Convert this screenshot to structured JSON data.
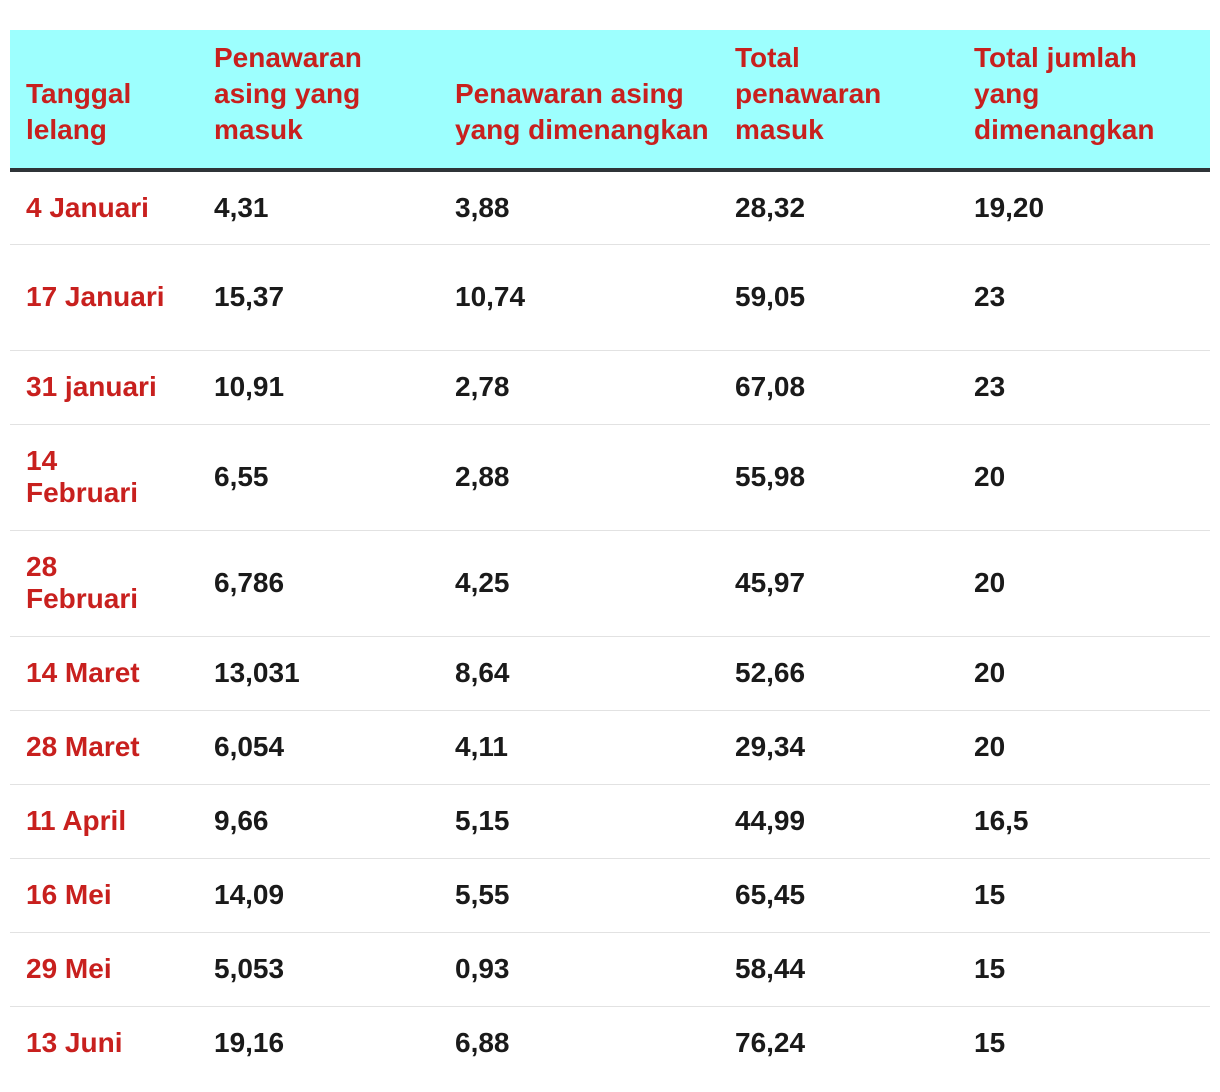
{
  "table": {
    "headers": [
      "Tanggal lelang",
      "Penawaran asing yang masuk",
      "Penawaran asing yang dimenangkan",
      "Total penawaran masuk",
      "Total jumlah yang dimenangkan"
    ],
    "rows": [
      [
        "4 Januari",
        "4,31",
        "3,88",
        "28,32",
        "19,20"
      ],
      [
        "17 Januari",
        "15,37",
        "10,74",
        "59,05",
        "23"
      ],
      [
        "31 januari",
        "10,91",
        "2,78",
        "67,08",
        "23"
      ],
      [
        "14 Februari",
        "6,55",
        "2,88",
        "55,98",
        "20"
      ],
      [
        "28 Februari",
        "6,786",
        "4,25",
        "45,97",
        "20"
      ],
      [
        "14 Maret",
        "13,031",
        "8,64",
        "52,66",
        "20"
      ],
      [
        "28 Maret",
        "6,054",
        "4,11",
        "29,34",
        "20"
      ],
      [
        "11 April",
        "9,66",
        "5,15",
        "44,99",
        "16,5"
      ],
      [
        "16 Mei",
        "14,09",
        "5,55",
        "65,45",
        "15"
      ],
      [
        "29 Mei",
        "5,053",
        "0,93",
        "58,44",
        "15"
      ],
      [
        "13 Juni",
        "19,16",
        "6,88",
        "76,24",
        "15"
      ]
    ]
  },
  "colors": {
    "header_background": "#9dfffe",
    "accent_red": "#c8201e",
    "header_rule": "#2f3438",
    "row_divider": "#e2e2e2"
  }
}
